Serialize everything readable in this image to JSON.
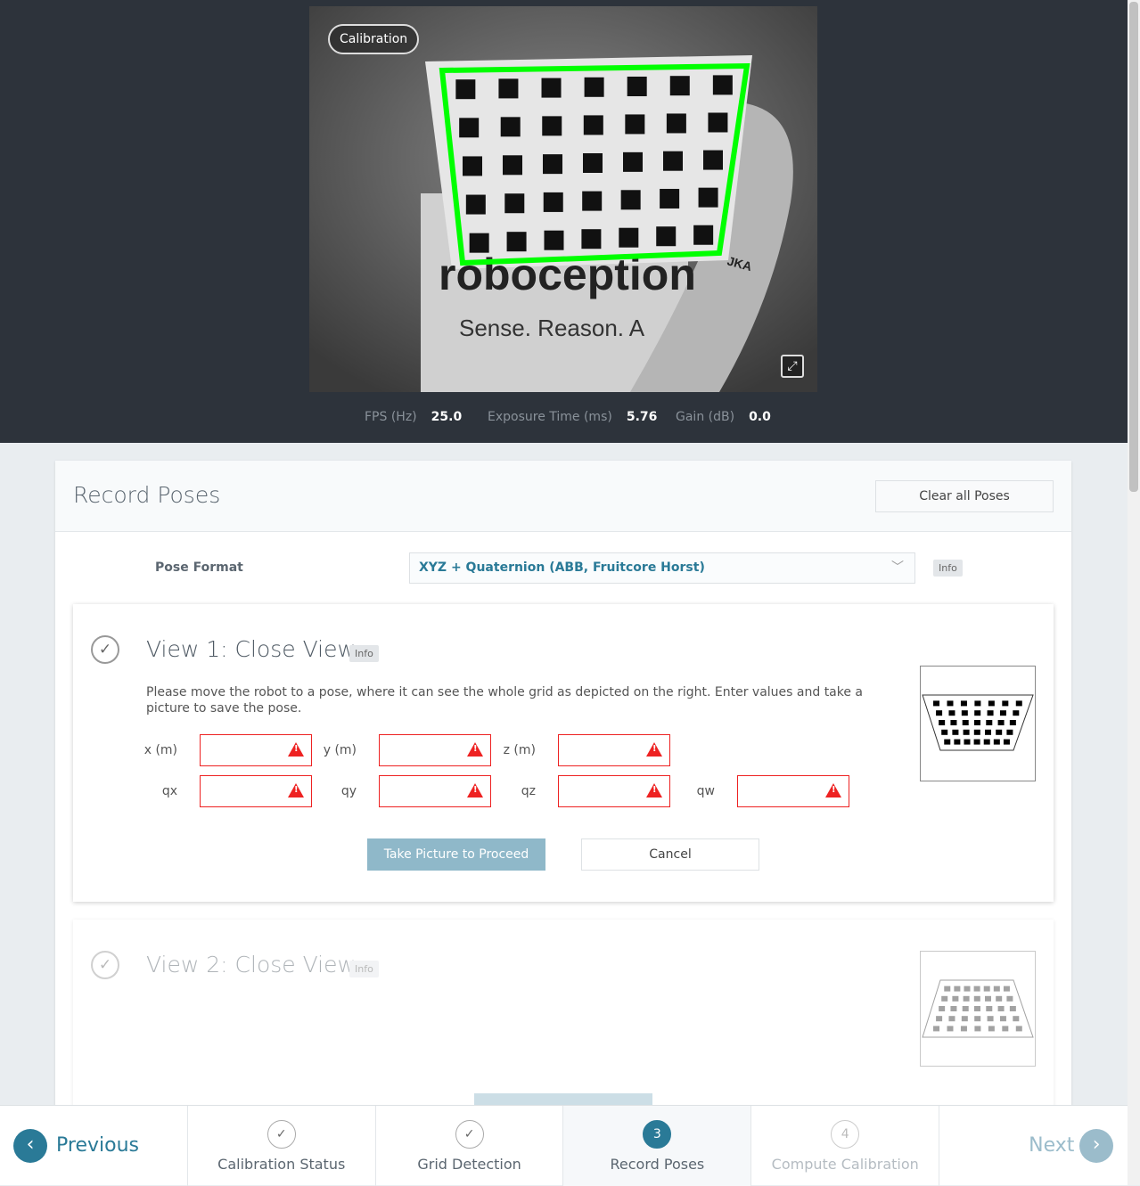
{
  "camera": {
    "badge": "Calibration",
    "overlay_text_1": "roboception",
    "overlay_text_2": "Sense. Reason. A",
    "overlay_text_3": "JKA",
    "fullscreen_icon": "expand-icon"
  },
  "stats": [
    {
      "label": "FPS (Hz)",
      "value": "25.0"
    },
    {
      "label": "Exposure Time (ms)",
      "value": "5.76"
    },
    {
      "label": "Gain (dB)",
      "value": "0.0"
    }
  ],
  "card": {
    "title": "Record Poses",
    "clear_label": "Clear all Poses",
    "pose_format_label": "Pose Format",
    "pose_format_value": "XYZ + Quaternion (ABB, Fruitcore Horst)",
    "info": "Info"
  },
  "view1": {
    "title": "View 1: Close View",
    "info": "Info",
    "description": "Please move the robot to a pose, where it can see the whole grid as depicted on the right. Enter values and take a picture to save the pose.",
    "fields": [
      "x (m)",
      "y (m)",
      "z (m)",
      "qx",
      "qy",
      "qz",
      "qw"
    ],
    "take_picture": "Take Picture to Proceed",
    "cancel": "Cancel"
  },
  "view2": {
    "title": "View 2: Close View",
    "info": "Info"
  },
  "nav": {
    "previous": "Previous",
    "next": "Next",
    "steps": [
      {
        "num": "✓",
        "label": "Calibration Status"
      },
      {
        "num": "✓",
        "label": "Grid Detection"
      },
      {
        "num": "3",
        "label": "Record Poses"
      },
      {
        "num": "4",
        "label": "Compute Calibration"
      }
    ]
  },
  "colors": {
    "accent": "#2a7a97",
    "header_bg": "#2d333b",
    "error": "#e22",
    "grid_green": "#00ff00"
  }
}
